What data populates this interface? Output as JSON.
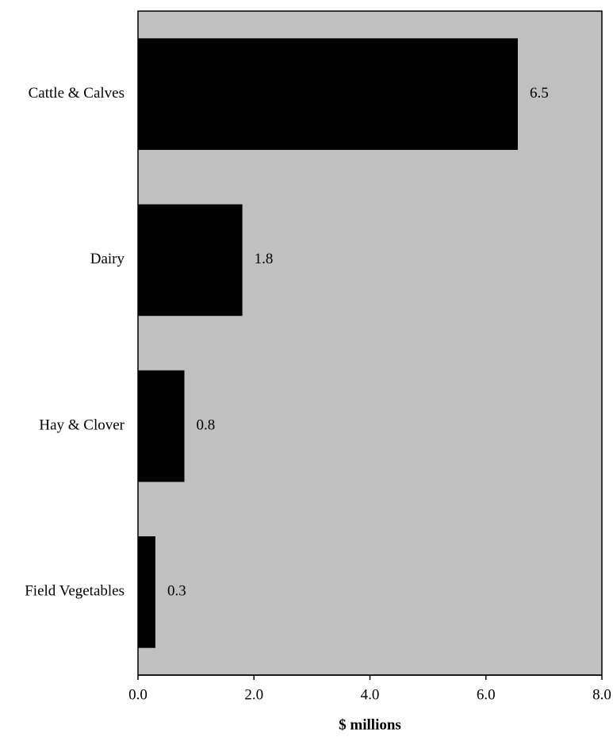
{
  "colors": {
    "plot_background": "#c0c0c0",
    "bar_fill": "#000000",
    "axis": "#000000",
    "text": "#000000",
    "page_background": "#ffffff"
  },
  "chart_data": {
    "type": "bar",
    "orientation": "horizontal",
    "title": "",
    "xlabel": "$ millions",
    "ylabel": "",
    "categories": [
      "Cattle & Calves",
      "Dairy",
      "Hay & Clover",
      "Field Vegetables"
    ],
    "values": [
      6.55,
      1.8,
      0.8,
      0.3
    ],
    "data_labels": [
      "6.5",
      "1.8",
      "0.8",
      "0.3"
    ],
    "xlim": [
      0,
      8
    ],
    "xticks": [
      0,
      2,
      4,
      6,
      8
    ],
    "xtick_labels": [
      "0.0",
      "2.0",
      "4.0",
      "6.0",
      "8.0"
    ],
    "grid": false,
    "legend": "none"
  }
}
